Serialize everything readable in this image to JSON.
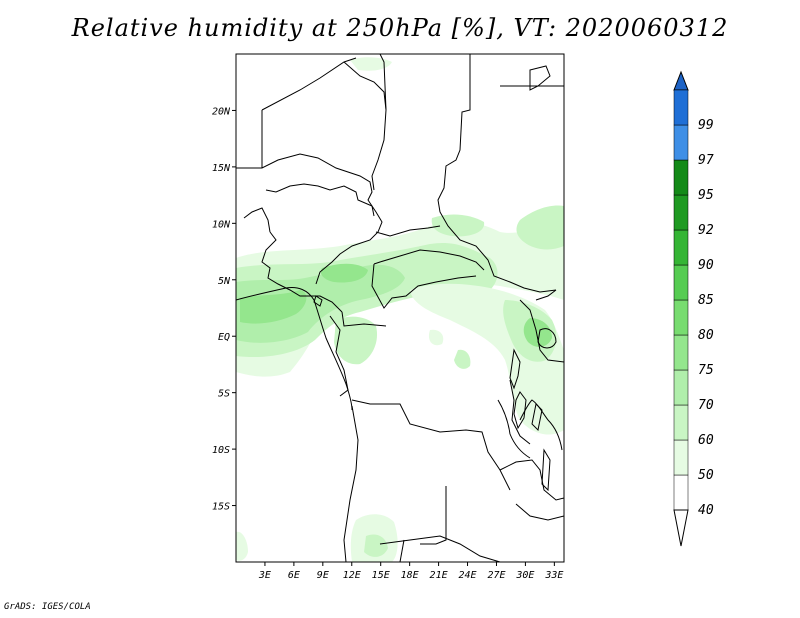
{
  "title": "Relative humidity at 250hPa [%], VT: 2020060312",
  "footer": "GrADS: IGES/COLA",
  "map": {
    "lon_range": [
      0,
      34
    ],
    "lat_range": [
      -20,
      25
    ],
    "lat_ticks": [
      {
        "value": 20,
        "label": "20N"
      },
      {
        "value": 15,
        "label": "15N"
      },
      {
        "value": 10,
        "label": "10N"
      },
      {
        "value": 5,
        "label": "5N"
      },
      {
        "value": 0,
        "label": "EQ"
      },
      {
        "value": -5,
        "label": "5S"
      },
      {
        "value": -10,
        "label": "10S"
      },
      {
        "value": -15,
        "label": "15S"
      }
    ],
    "lon_ticks": [
      {
        "value": 3,
        "label": "3E"
      },
      {
        "value": 6,
        "label": "6E"
      },
      {
        "value": 9,
        "label": "9E"
      },
      {
        "value": 12,
        "label": "12E"
      },
      {
        "value": 15,
        "label": "15E"
      },
      {
        "value": 18,
        "label": "18E"
      },
      {
        "value": 21,
        "label": "21E"
      },
      {
        "value": 24,
        "label": "24E"
      },
      {
        "value": 27,
        "label": "27E"
      },
      {
        "value": 30,
        "label": "30E"
      },
      {
        "value": 33,
        "label": "33E"
      }
    ]
  },
  "colorbar": {
    "levels": [
      {
        "label": "40",
        "color": "#ffffff"
      },
      {
        "label": "50",
        "color": "#e6fbe3"
      },
      {
        "label": "60",
        "color": "#c9f5c4"
      },
      {
        "label": "70",
        "color": "#b0eeab"
      },
      {
        "label": "75",
        "color": "#94e68d"
      },
      {
        "label": "80",
        "color": "#78dc70"
      },
      {
        "label": "85",
        "color": "#56cc52"
      },
      {
        "label": "90",
        "color": "#35b535"
      },
      {
        "label": "92",
        "color": "#1f9a22"
      },
      {
        "label": "95",
        "color": "#148a18"
      },
      {
        "label": "97",
        "color": "#3f8fe6"
      },
      {
        "label": "99",
        "color": "#1f6fd6"
      }
    ],
    "top_color": "#1d63c6"
  }
}
